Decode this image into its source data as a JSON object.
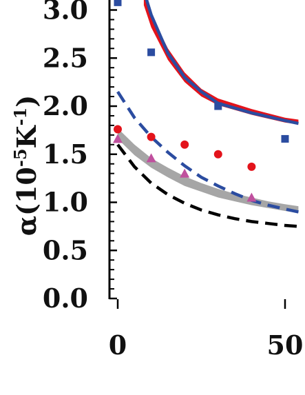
{
  "chart_data": {
    "type": "scatter",
    "ylabel": {
      "prefix": "α(10",
      "exp1": "-5",
      "mid": "K",
      "exp2": "-1",
      "suffix": ")"
    },
    "xlim": [
      0,
      54
    ],
    "ylim": [
      0,
      3.05
    ],
    "x_ticks": [
      0,
      50
    ],
    "x_tick_labels": [
      "0",
      "50"
    ],
    "y_ticks": [
      0,
      0.5,
      1.0,
      1.5,
      2.0,
      2.5,
      3.0
    ],
    "y_tick_labels": [
      "0.0",
      "0.5",
      "1.0",
      "1.5",
      "2.0",
      "2.5",
      "3.0"
    ],
    "grid": false,
    "series": [
      {
        "kind": "band",
        "color": "#e3131b",
        "points": [
          [
            7.8,
            3.2,
            3.05
          ],
          [
            10,
            2.95,
            2.82
          ],
          [
            15,
            2.6,
            2.48
          ],
          [
            20,
            2.35,
            2.25
          ],
          [
            25,
            2.18,
            2.1
          ],
          [
            30,
            2.08,
            2.01
          ],
          [
            40,
            1.97,
            1.91
          ],
          [
            50,
            1.88,
            1.83
          ],
          [
            54,
            1.86,
            1.81
          ]
        ]
      },
      {
        "kind": "line",
        "color": "#2b4ca0",
        "dash": "none",
        "points": [
          [
            8.5,
            3.12
          ],
          [
            10,
            2.95
          ],
          [
            15,
            2.55
          ],
          [
            20,
            2.3
          ],
          [
            25,
            2.15
          ],
          [
            30,
            2.03
          ],
          [
            40,
            1.93
          ],
          [
            50,
            1.85
          ],
          [
            54,
            1.82
          ]
        ]
      },
      {
        "kind": "band",
        "color": "#a6a6a6",
        "points": [
          [
            0,
            1.77,
            1.66
          ],
          [
            5,
            1.6,
            1.49
          ],
          [
            10,
            1.46,
            1.36
          ],
          [
            15,
            1.36,
            1.26
          ],
          [
            20,
            1.27,
            1.17
          ],
          [
            25,
            1.2,
            1.11
          ],
          [
            30,
            1.14,
            1.05
          ],
          [
            35,
            1.09,
            1.01
          ],
          [
            40,
            1.05,
            0.97
          ],
          [
            45,
            1.01,
            0.94
          ],
          [
            50,
            0.98,
            0.91
          ],
          [
            54,
            0.96,
            0.89
          ]
        ]
      },
      {
        "kind": "line",
        "color": "#2b4ca0",
        "dash": "18 10",
        "points": [
          [
            0,
            2.15
          ],
          [
            5,
            1.88
          ],
          [
            10,
            1.68
          ],
          [
            15,
            1.52
          ],
          [
            20,
            1.38
          ],
          [
            25,
            1.26
          ],
          [
            30,
            1.17
          ],
          [
            35,
            1.09
          ],
          [
            40,
            1.02
          ],
          [
            45,
            0.97
          ],
          [
            50,
            0.93
          ],
          [
            54,
            0.9
          ]
        ]
      },
      {
        "kind": "line",
        "color": "#000000",
        "dash": "18 10",
        "points": [
          [
            0,
            1.6
          ],
          [
            5,
            1.37
          ],
          [
            10,
            1.2
          ],
          [
            15,
            1.08
          ],
          [
            20,
            0.99
          ],
          [
            25,
            0.92
          ],
          [
            30,
            0.87
          ],
          [
            35,
            0.83
          ],
          [
            40,
            0.8
          ],
          [
            45,
            0.78
          ],
          [
            50,
            0.76
          ],
          [
            54,
            0.75
          ]
        ]
      },
      {
        "kind": "points",
        "marker": "square",
        "color": "#2b4ca0",
        "x": [
          0,
          10,
          30,
          50
        ],
        "y": [
          3.08,
          2.56,
          2.0,
          1.66
        ]
      },
      {
        "kind": "points",
        "marker": "circle",
        "color": "#e3131b",
        "x": [
          0,
          10,
          20,
          30,
          40
        ],
        "y": [
          1.76,
          1.68,
          1.6,
          1.5,
          1.37
        ]
      },
      {
        "kind": "points",
        "marker": "triangle",
        "color": "#c0509e",
        "x": [
          0,
          10,
          20,
          40
        ],
        "y": [
          1.66,
          1.46,
          1.3,
          1.05
        ]
      }
    ]
  }
}
